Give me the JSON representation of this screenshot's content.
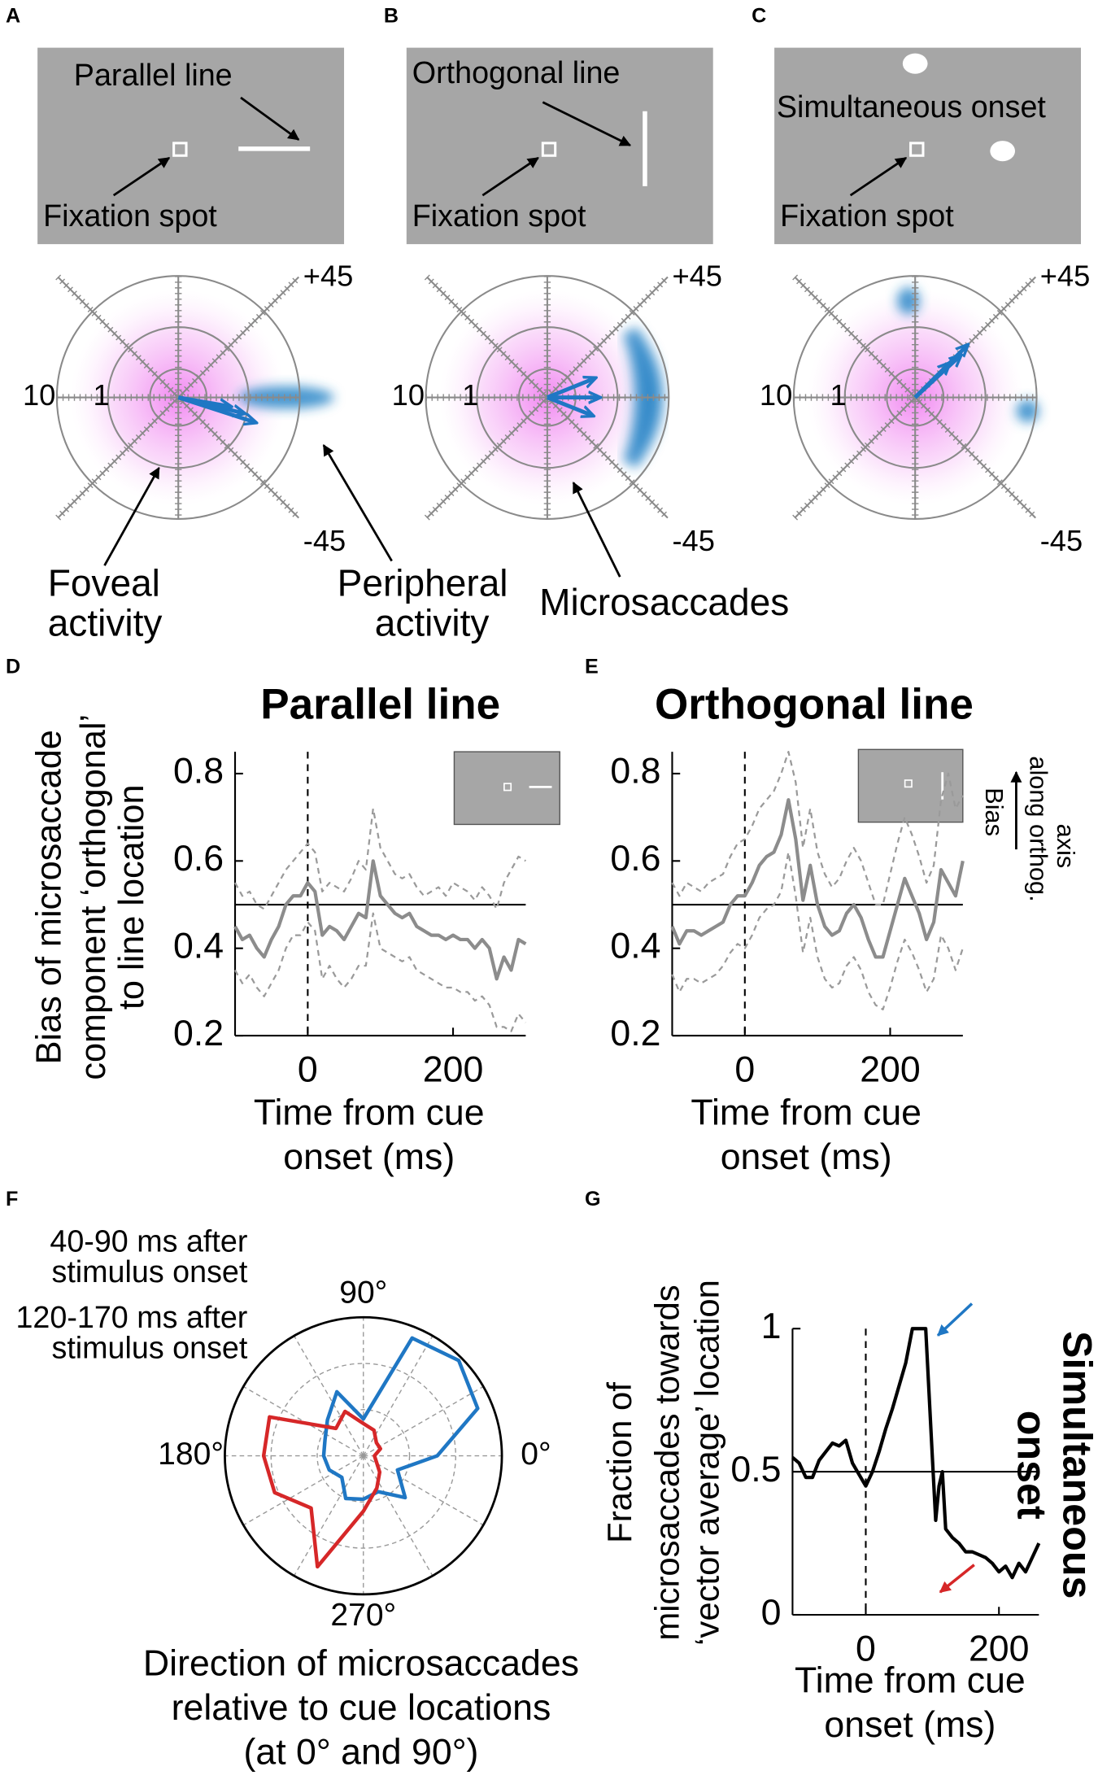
{
  "panels_abc": [
    {
      "letter": "A",
      "stimulus": "Parallel line",
      "fixation": "Fixation spot",
      "ring_outer": "10",
      "ring_inner": "1",
      "angle_top": "+45",
      "angle_bottom": "-45",
      "notes": [
        [
          "Foveal",
          "activity"
        ],
        [
          "Peripheral",
          "activity"
        ]
      ]
    },
    {
      "letter": "B",
      "stimulus": "Orthogonal line",
      "fixation": "Fixation spot",
      "ring_outer": "10",
      "ring_inner": "1",
      "angle_top": "+45",
      "angle_bottom": "-45",
      "notes": [
        [
          "Microsaccades"
        ]
      ]
    },
    {
      "letter": "C",
      "stimulus": "Simultaneous onset",
      "fixation": "Fixation spot",
      "ring_outer": "10",
      "ring_inner": "1",
      "angle_top": "+45",
      "angle_bottom": "-45"
    }
  ],
  "chart_data": [
    {
      "type": "line",
      "letter": "D",
      "title": "Parallel line",
      "ylabel": [
        "Bias of microsaccade",
        "component ‘orthogonal’",
        "to line location"
      ],
      "xlabel": [
        "Time from cue",
        "onset (ms)"
      ],
      "x": [
        -100,
        -90,
        -80,
        -70,
        -60,
        -50,
        -40,
        -30,
        -20,
        -10,
        0,
        10,
        20,
        30,
        40,
        50,
        60,
        70,
        80,
        90,
        100,
        110,
        120,
        130,
        140,
        150,
        160,
        170,
        180,
        190,
        200,
        210,
        220,
        230,
        240,
        250,
        260,
        270,
        280,
        290,
        300
      ],
      "series": [
        {
          "color": "#8c8c8c",
          "style": "solid",
          "values": [
            0.45,
            0.42,
            0.43,
            0.4,
            0.38,
            0.42,
            0.45,
            0.5,
            0.52,
            0.52,
            0.55,
            0.53,
            0.43,
            0.45,
            0.44,
            0.42,
            0.45,
            0.48,
            0.47,
            0.6,
            0.52,
            0.5,
            0.48,
            0.47,
            0.48,
            0.45,
            0.44,
            0.43,
            0.43,
            0.42,
            0.43,
            0.42,
            0.42,
            0.4,
            0.42,
            0.4,
            0.33,
            0.38,
            0.35,
            0.42,
            0.41
          ]
        },
        {
          "color": "#9a9a9a",
          "style": "dashed",
          "values": [
            0.55,
            0.52,
            0.53,
            0.5,
            0.49,
            0.52,
            0.55,
            0.58,
            0.6,
            0.62,
            0.64,
            0.62,
            0.53,
            0.55,
            0.54,
            0.53,
            0.56,
            0.6,
            0.58,
            0.72,
            0.63,
            0.6,
            0.57,
            0.56,
            0.57,
            0.54,
            0.52,
            0.53,
            0.54,
            0.52,
            0.55,
            0.54,
            0.53,
            0.51,
            0.54,
            0.52,
            0.49,
            0.55,
            0.58,
            0.61,
            0.6
          ]
        },
        {
          "color": "#9a9a9a",
          "style": "dashed",
          "values": [
            0.35,
            0.32,
            0.34,
            0.31,
            0.29,
            0.32,
            0.35,
            0.4,
            0.43,
            0.43,
            0.46,
            0.44,
            0.33,
            0.36,
            0.33,
            0.31,
            0.33,
            0.36,
            0.36,
            0.48,
            0.4,
            0.39,
            0.38,
            0.37,
            0.38,
            0.35,
            0.34,
            0.33,
            0.32,
            0.31,
            0.31,
            0.3,
            0.3,
            0.28,
            0.29,
            0.27,
            0.22,
            0.22,
            0.21,
            0.25,
            0.23
          ]
        }
      ],
      "xlim": [
        -100,
        300
      ],
      "xticks": [
        0,
        200
      ],
      "ylim": [
        0.2,
        0.85
      ],
      "yticks": [
        0.2,
        0.4,
        0.6,
        0.8
      ],
      "reference_y": 0.5,
      "reference_x": 0
    },
    {
      "type": "line",
      "letter": "E",
      "title": "Orthogonal line",
      "side_label": [
        "Bias",
        "along orthog.",
        "axis"
      ],
      "xlabel": [
        "Time from cue",
        "onset (ms)"
      ],
      "x": [
        -100,
        -90,
        -80,
        -70,
        -60,
        -50,
        -40,
        -30,
        -20,
        -10,
        0,
        10,
        20,
        30,
        40,
        50,
        60,
        70,
        80,
        90,
        100,
        110,
        120,
        130,
        140,
        150,
        160,
        170,
        180,
        190,
        200,
        210,
        220,
        230,
        240,
        250,
        260,
        270,
        280,
        290,
        300
      ],
      "series": [
        {
          "color": "#8c8c8c",
          "style": "solid",
          "values": [
            0.45,
            0.41,
            0.44,
            0.44,
            0.43,
            0.44,
            0.45,
            0.46,
            0.5,
            0.52,
            0.52,
            0.55,
            0.59,
            0.61,
            0.62,
            0.66,
            0.74,
            0.65,
            0.51,
            0.59,
            0.5,
            0.45,
            0.43,
            0.44,
            0.48,
            0.5,
            0.47,
            0.42,
            0.38,
            0.38,
            0.44,
            0.5,
            0.56,
            0.52,
            0.48,
            0.42,
            0.46,
            0.58,
            0.55,
            0.52,
            0.6
          ]
        },
        {
          "color": "#9a9a9a",
          "style": "dashed",
          "values": [
            0.55,
            0.52,
            0.55,
            0.54,
            0.53,
            0.55,
            0.56,
            0.57,
            0.61,
            0.64,
            0.65,
            0.68,
            0.72,
            0.74,
            0.76,
            0.8,
            0.85,
            0.78,
            0.63,
            0.72,
            0.62,
            0.57,
            0.54,
            0.56,
            0.6,
            0.63,
            0.6,
            0.55,
            0.5,
            0.5,
            0.57,
            0.64,
            0.7,
            0.66,
            0.61,
            0.55,
            0.59,
            0.74,
            0.8,
            0.72,
            0.75
          ]
        },
        {
          "color": "#9a9a9a",
          "style": "dashed",
          "values": [
            0.34,
            0.3,
            0.33,
            0.33,
            0.32,
            0.33,
            0.34,
            0.36,
            0.39,
            0.41,
            0.4,
            0.43,
            0.47,
            0.49,
            0.5,
            0.53,
            0.62,
            0.52,
            0.39,
            0.47,
            0.38,
            0.33,
            0.31,
            0.32,
            0.36,
            0.38,
            0.35,
            0.3,
            0.27,
            0.26,
            0.31,
            0.37,
            0.42,
            0.39,
            0.35,
            0.3,
            0.33,
            0.43,
            0.4,
            0.35,
            0.4
          ]
        }
      ],
      "xlim": [
        -100,
        300
      ],
      "xticks": [
        0,
        200
      ],
      "ylim": [
        0.2,
        0.85
      ],
      "yticks": [
        0.2,
        0.4,
        0.6,
        0.8
      ],
      "reference_y": 0.5,
      "reference_x": 0
    },
    {
      "type": "polar",
      "letter": "F",
      "xlabel": [
        "Direction of microsaccades",
        "relative to cue locations",
        "(at 0° and 90°)"
      ],
      "theta": [
        0,
        22.5,
        45,
        67.5,
        90,
        112.5,
        135,
        157.5,
        180,
        202.5,
        225,
        247.5,
        270,
        292.5,
        315,
        337.5
      ],
      "series": [
        {
          "name": [
            "40-90 ms after",
            "stimulus onset"
          ],
          "color": "#1f77c4",
          "values": [
            0.8,
            1.34,
            1.46,
            1.38,
            0.4,
            0.75,
            0.55,
            0.45,
            0.43,
            0.4,
            0.33,
            0.5,
            0.47,
            0.42,
            0.64,
            0.4
          ]
        },
        {
          "name": [
            "120-170 ms after",
            "stimulus onset"
          ],
          "color": "#d62728",
          "values": [
            0.12,
            0.2,
            0.2,
            0.3,
            0.35,
            0.52,
            0.42,
            1.1,
            1.08,
            1.04,
            0.8,
            1.3,
            0.6,
            0.38,
            0.25,
            0.15
          ]
        }
      ],
      "rlim": [
        0,
        1.5
      ],
      "rticks": [
        0.5,
        1
      ],
      "theta_grid": [
        0,
        30,
        60,
        90,
        120,
        150,
        180,
        210,
        240,
        270,
        300,
        330
      ],
      "theta_labels": [
        {
          "value": 90,
          "label": "90°"
        },
        {
          "value": 0,
          "label": "0°"
        },
        {
          "value": 180,
          "label": "180°"
        },
        {
          "value": 270,
          "label": "270°"
        }
      ]
    },
    {
      "type": "line",
      "letter": "G",
      "title": [
        "Simultaneous",
        "onset"
      ],
      "ylabel": [
        "Fraction of",
        "microsaccades towards",
        "‘vector average’ location"
      ],
      "xlabel": [
        "Time from cue",
        "onset (ms)"
      ],
      "x": [
        -110,
        -100,
        -90,
        -80,
        -70,
        -60,
        -50,
        -40,
        -30,
        -20,
        -10,
        0,
        10,
        20,
        30,
        40,
        50,
        60,
        70,
        80,
        90,
        100,
        105,
        110,
        115,
        120,
        130,
        140,
        150,
        160,
        170,
        180,
        190,
        200,
        210,
        220,
        230,
        240,
        250,
        260
      ],
      "series": [
        {
          "color": "#000000",
          "style": "solid",
          "values": [
            0.55,
            0.53,
            0.48,
            0.48,
            0.54,
            0.57,
            0.6,
            0.59,
            0.61,
            0.53,
            0.49,
            0.45,
            0.5,
            0.57,
            0.65,
            0.72,
            0.8,
            0.88,
            1,
            1,
            1,
            0.55,
            0.33,
            0.45,
            0.5,
            0.3,
            0.27,
            0.25,
            0.22,
            0.22,
            0.21,
            0.2,
            0.18,
            0.15,
            0.17,
            0.13,
            0.18,
            0.15,
            0.2,
            0.25
          ]
        }
      ],
      "xlim": [
        -110,
        260
      ],
      "xticks": [
        0,
        200
      ],
      "ylim": [
        0,
        1
      ],
      "yticks": [
        0,
        0.5,
        1
      ],
      "reference_y": 0.5,
      "reference_x": 0
    }
  ]
}
